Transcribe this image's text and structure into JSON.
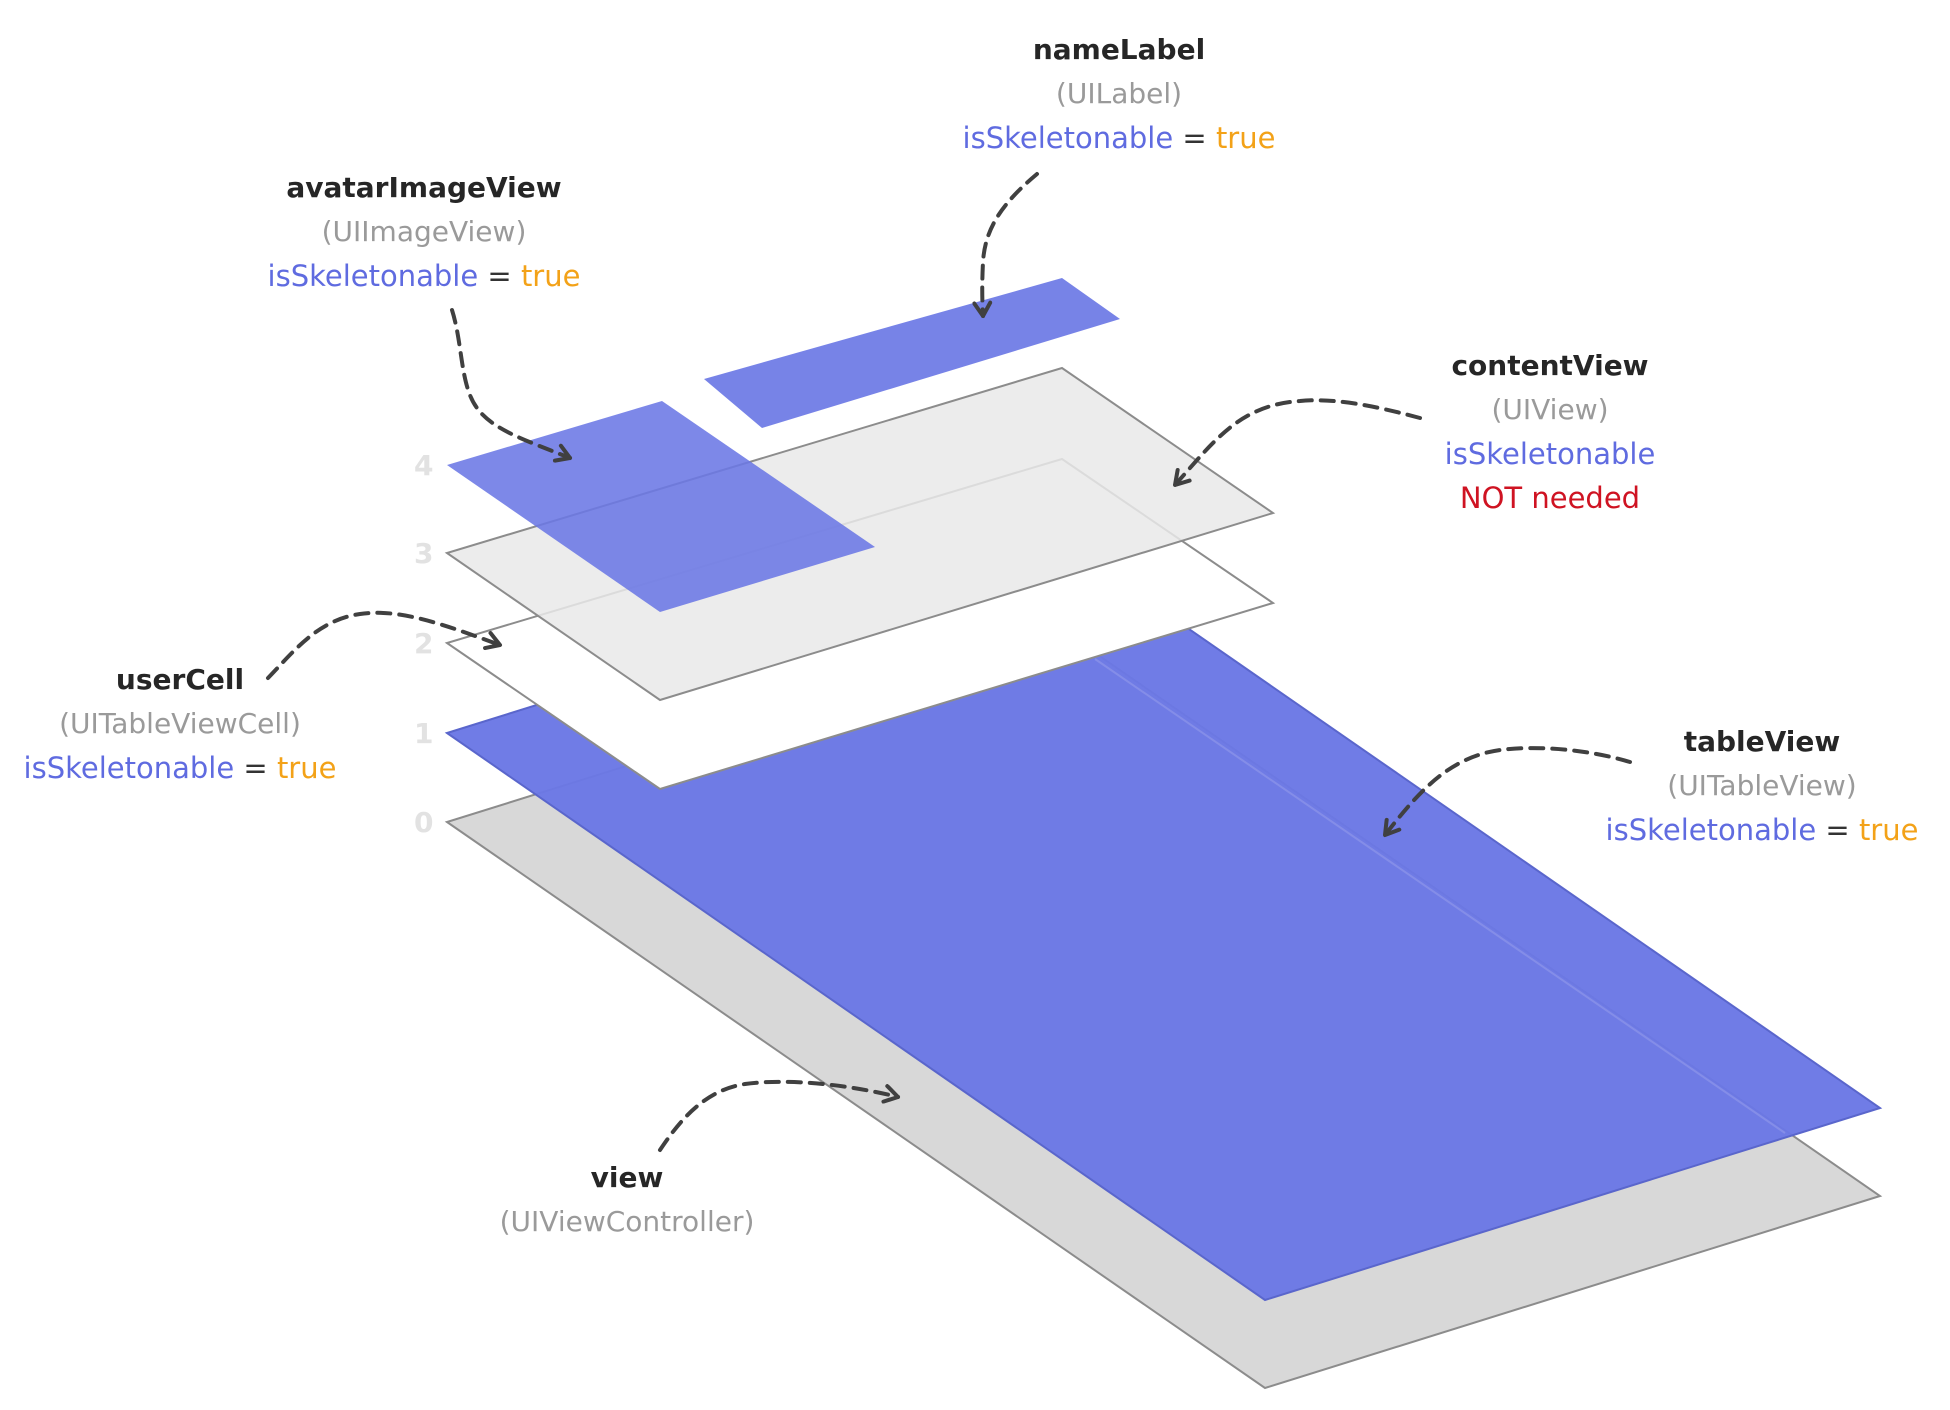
{
  "colors": {
    "accent": "#6b78e5",
    "gray_layer": "#d8d8d8",
    "light_layer": "#e9e9e9",
    "value": "#f3a218",
    "warning": "#cf1322",
    "class_text": "#9a9a9a"
  },
  "levels": [
    "0",
    "1",
    "2",
    "3",
    "4"
  ],
  "labels": {
    "nameLabel": {
      "name": "nameLabel",
      "class": "(UILabel)",
      "prop": "isSkeletonable",
      "eq": "=",
      "value": "true"
    },
    "avatarImageView": {
      "name": "avatarImageView",
      "class": "(UIImageView)",
      "prop": "isSkeletonable",
      "eq": "=",
      "value": "true"
    },
    "contentView": {
      "name": "contentView",
      "class": "(UIView)",
      "prop": "isSkeletonable",
      "note": "NOT needed"
    },
    "userCell": {
      "name": "userCell",
      "class": "(UITableViewCell)",
      "prop": "isSkeletonable",
      "eq": "=",
      "value": "true"
    },
    "tableView": {
      "name": "tableView",
      "class": "(UITableView)",
      "prop": "isSkeletonable",
      "eq": "=",
      "value": "true"
    },
    "view": {
      "name": "view",
      "class": "(UIViewController)"
    }
  }
}
